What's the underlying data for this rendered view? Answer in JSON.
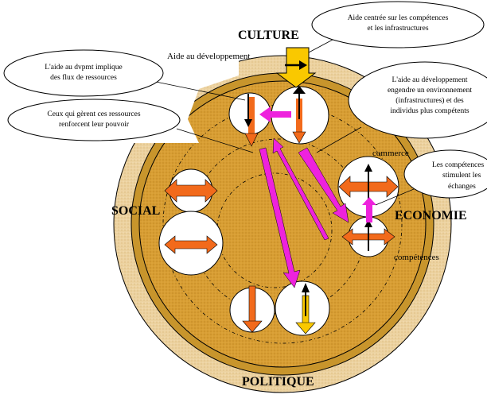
{
  "labels": {
    "culture": "CULTURE",
    "social": "SOCIAL",
    "economie": "ECONOMIE",
    "politique": "POLITIQUE",
    "aide_dev": "Aide au développement",
    "commerce": "commerce",
    "competences": "compétences"
  },
  "callouts": {
    "competences_infra": [
      "Aide centrée sur les compétences",
      "et les infrastructures"
    ],
    "flux": [
      "L'aide au dvpmt implique",
      "des flux de ressources"
    ],
    "pouvoir": [
      "Ceux qui gèrent ces ressources",
      "renforcent leur pouvoir"
    ],
    "environnement": [
      "L'aide au développement",
      "engendre un environnement",
      "(infrastructures) et des",
      "individus plus compétents"
    ],
    "stimulent": [
      "Les compétences",
      "stimulent les",
      "échanges"
    ]
  },
  "colors": {
    "outer_ring": "#e8c890",
    "mid_ring": "#c8952c",
    "disc": "#d89e33",
    "inner": "#d19529",
    "orange_arrow": "#f26a1b",
    "magenta_arrow": "#ee22dd",
    "yellow_arrow": "#f9c800",
    "black": "#000000"
  }
}
